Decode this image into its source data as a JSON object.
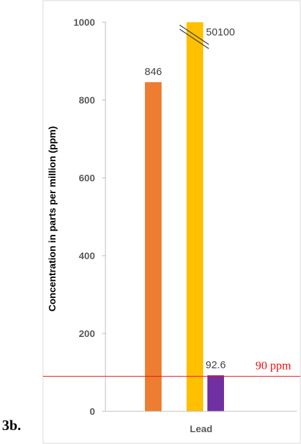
{
  "figure_label": "3b.",
  "chart_data": {
    "type": "bar",
    "categories": [
      "Lead"
    ],
    "series": [
      {
        "value": 846,
        "display_value": 846,
        "color": "#ed7d31",
        "label": "846",
        "broken": false
      },
      {
        "value": 50100,
        "display_value": 1000,
        "color": "#ffc000",
        "label": "50100",
        "broken": true
      },
      {
        "value": 92.6,
        "display_value": 92.6,
        "color": "#7030a0",
        "label": "92.6",
        "broken": false
      }
    ],
    "ylabel": "Concentration in parts per million (ppm)",
    "xlabel": "",
    "ylim": [
      0,
      1000
    ],
    "yticks": [
      0,
      200,
      400,
      600,
      800,
      1000
    ],
    "reference_line": {
      "value": 90,
      "label": "90 ppm",
      "color": "#ee1111"
    },
    "grid": false
  }
}
